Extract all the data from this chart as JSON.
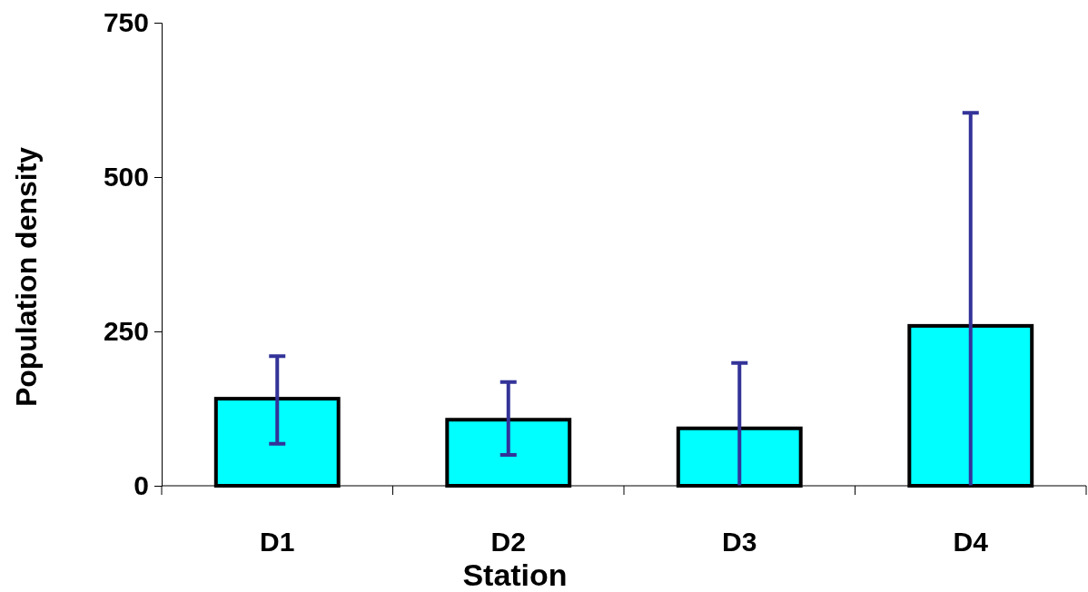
{
  "chart_data": {
    "type": "bar",
    "xlabel": "Station",
    "ylabel": "Population density",
    "categories": [
      "D1",
      "D2",
      "D3",
      "D4"
    ],
    "values": [
      141,
      107,
      93,
      259
    ],
    "errors": [
      [
        68,
        210
      ],
      [
        50,
        168
      ],
      [
        0,
        199
      ],
      [
        0,
        604
      ]
    ],
    "color": "#00ffff",
    "ylim": [
      0,
      750
    ],
    "yticks": [
      0,
      250,
      500,
      750
    ],
    "grid": false
  }
}
